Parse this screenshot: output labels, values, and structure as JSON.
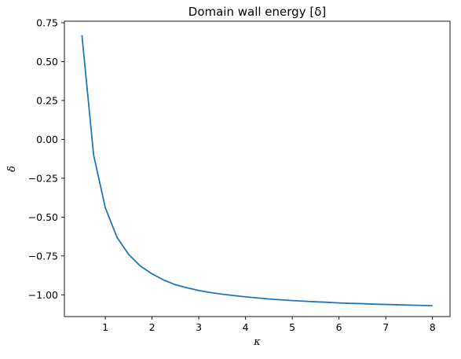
{
  "chart_data": {
    "type": "line",
    "title": "Domain wall energy [δ]",
    "xlabel": "κ",
    "ylabel": "δ",
    "xlim": [
      0.125,
      8.375
    ],
    "ylim": [
      -1.14,
      0.76
    ],
    "xticks": [
      1,
      2,
      3,
      4,
      5,
      6,
      7,
      8
    ],
    "xtick_labels": [
      "1",
      "2",
      "3",
      "4",
      "5",
      "6",
      "7",
      "8"
    ],
    "yticks": [
      0.75,
      0.5,
      0.25,
      0.0,
      -0.25,
      -0.5,
      -0.75,
      -1.0
    ],
    "ytick_labels": [
      "0.75",
      "0.50",
      "0.25",
      "0.00",
      "−0.25",
      "−0.50",
      "−0.75",
      "−1.00"
    ],
    "grid": false,
    "legend": "none",
    "series": [
      {
        "color": "#1f77b4",
        "x": [
          0.5,
          0.75,
          1.0,
          1.25,
          1.5,
          1.75,
          2.0,
          2.25,
          2.5,
          2.75,
          3.0,
          3.25,
          3.5,
          3.75,
          4.0,
          4.25,
          4.5,
          4.75,
          5.0,
          5.25,
          5.5,
          5.75,
          6.0,
          6.25,
          6.5,
          6.75,
          7.0,
          7.25,
          7.5,
          7.75,
          8.0
        ],
        "y": [
          0.67,
          -0.1,
          -0.44,
          -0.63,
          -0.74,
          -0.815,
          -0.865,
          -0.905,
          -0.935,
          -0.955,
          -0.972,
          -0.985,
          -0.996,
          -1.005,
          -1.013,
          -1.02,
          -1.027,
          -1.032,
          -1.037,
          -1.041,
          -1.045,
          -1.048,
          -1.052,
          -1.055,
          -1.057,
          -1.06,
          -1.062,
          -1.064,
          -1.066,
          -1.068,
          -1.07
        ]
      }
    ]
  }
}
